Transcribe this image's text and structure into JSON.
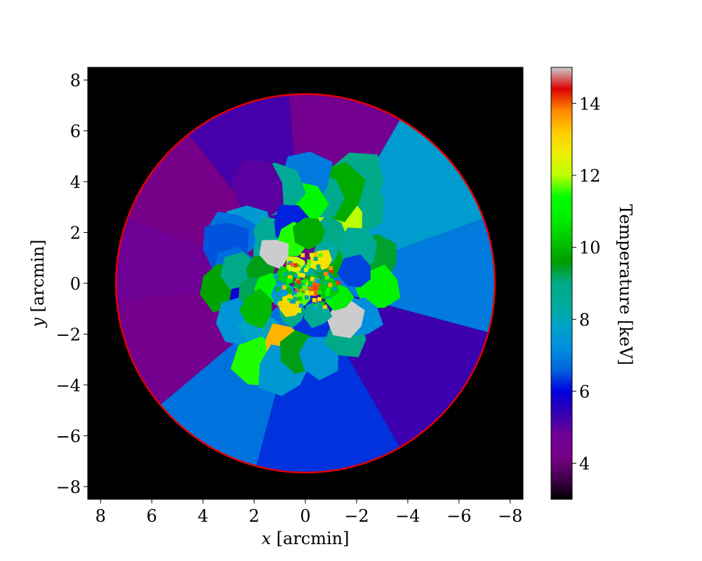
{
  "chart_data": {
    "type": "heatmap",
    "subtype": "voronoi temperature map",
    "xlabel": {
      "var": "x",
      "unit": " [arcmin]"
    },
    "ylabel": {
      "var": "y",
      "unit": " [arcmin]"
    },
    "x_ticks": [
      "8",
      "6",
      "4",
      "2",
      "0",
      "−2",
      "−4",
      "−6",
      "−8"
    ],
    "x_tick_values": [
      8,
      6,
      4,
      2,
      0,
      -2,
      -4,
      -6,
      -8
    ],
    "y_ticks": [
      "8",
      "6",
      "4",
      "2",
      "0",
      "−2",
      "−4",
      "−6",
      "−8"
    ],
    "y_tick_values": [
      8,
      6,
      4,
      2,
      0,
      -2,
      -4,
      -6,
      -8
    ],
    "xlim": [
      8.5,
      -8.5
    ],
    "ylim": [
      -8.5,
      8.5
    ],
    "x_inverted": true,
    "background_color": "#000000",
    "grid": false,
    "boundary_circle": {
      "center": [
        0,
        0
      ],
      "radius_arcmin": 7.4,
      "color": "#e00000"
    },
    "colorbar": {
      "label": "Temperature [keV]",
      "range": [
        3,
        15
      ],
      "ticks": [
        "4",
        "6",
        "8",
        "10",
        "12",
        "14"
      ],
      "tick_values": [
        4,
        6,
        8,
        10,
        12,
        14
      ],
      "colormap": "nipy_spectral"
    },
    "outer_sectors": [
      {
        "angle_deg": [
          20,
          60
        ],
        "temperature": 7.6
      },
      {
        "angle_deg": [
          60,
          95
        ],
        "temperature": 4.5
      },
      {
        "angle_deg": [
          95,
          128
        ],
        "temperature": 5.2
      },
      {
        "angle_deg": [
          128,
          160
        ],
        "temperature": 4.2
      },
      {
        "angle_deg": [
          160,
          185
        ],
        "temperature": 4.8
      },
      {
        "angle_deg": [
          185,
          220
        ],
        "temperature": 4.4
      },
      {
        "angle_deg": [
          220,
          255
        ],
        "temperature": 6.8
      },
      {
        "angle_deg": [
          255,
          300
        ],
        "temperature": 6.3
      },
      {
        "angle_deg": [
          300,
          345
        ],
        "temperature": 5.3
      },
      {
        "angle_deg": [
          345,
          380
        ],
        "temperature": 6.9
      }
    ],
    "inner_cells": [
      {
        "x": -2.8,
        "y": 1.0,
        "temperature": 9.4
      },
      {
        "x": -2.9,
        "y": -0.2,
        "temperature": 11.0
      },
      {
        "x": -2.1,
        "y": 3.1,
        "temperature": 8.9
      },
      {
        "x": -2.0,
        "y": 4.0,
        "temperature": 9.0
      },
      {
        "x": -1.5,
        "y": 2.5,
        "temperature": 12.0
      },
      {
        "x": -1.3,
        "y": 3.6,
        "temperature": 9.8
      },
      {
        "x": -0.6,
        "y": 3.4,
        "temperature": 8.8
      },
      {
        "x": 0.0,
        "y": 4.2,
        "temperature": 6.9
      },
      {
        "x": 0.1,
        "y": 3.1,
        "temperature": 11.2
      },
      {
        "x": 1.1,
        "y": 3.7,
        "temperature": 8.5
      },
      {
        "x": 1.8,
        "y": 3.7,
        "temperature": 5.0
      },
      {
        "x": 2.3,
        "y": 2.2,
        "temperature": 7.5
      },
      {
        "x": 2.9,
        "y": 1.9,
        "temperature": 6.8
      },
      {
        "x": 3.1,
        "y": 1.5,
        "temperature": 6.5
      },
      {
        "x": 2.8,
        "y": 0.5,
        "temperature": 6.7
      },
      {
        "x": 3.3,
        "y": -0.1,
        "temperature": 9.7
      },
      {
        "x": 2.5,
        "y": 0.4,
        "temperature": 9.0
      },
      {
        "x": 2.3,
        "y": -0.8,
        "temperature": 5.8
      },
      {
        "x": 2.6,
        "y": -1.5,
        "temperature": 7.4
      },
      {
        "x": 1.8,
        "y": -1.8,
        "temperature": 7.8
      },
      {
        "x": 1.8,
        "y": -3.2,
        "temperature": 11.5
      },
      {
        "x": 0.9,
        "y": -2.4,
        "temperature": 13.4
      },
      {
        "x": 0.9,
        "y": -3.4,
        "temperature": 7.5
      },
      {
        "x": 0.2,
        "y": -2.7,
        "temperature": 9.5
      },
      {
        "x": -0.5,
        "y": -2.9,
        "temperature": 7.4
      },
      {
        "x": -1.8,
        "y": -1.2,
        "temperature": 7.3
      },
      {
        "x": -1.6,
        "y": -2.1,
        "temperature": 9.0
      },
      {
        "x": -2.2,
        "y": -1.3,
        "temperature": 7.2
      },
      {
        "x": -1.6,
        "y": -1.4,
        "temperature": 15.0
      },
      {
        "x": -1.3,
        "y": 0.8,
        "temperature": 9.8
      },
      {
        "x": -1.0,
        "y": 1.9,
        "temperature": 9.0
      },
      {
        "x": -2.0,
        "y": 1.4,
        "temperature": 8.5
      },
      {
        "x": -2.0,
        "y": 0.4,
        "temperature": 6.4
      },
      {
        "x": 1.5,
        "y": 1.2,
        "temperature": 8.4
      },
      {
        "x": 1.7,
        "y": 0.5,
        "temperature": 9.5
      },
      {
        "x": 1.3,
        "y": 1.9,
        "temperature": 8.5
      },
      {
        "x": 0.6,
        "y": 2.3,
        "temperature": 6.2
      },
      {
        "x": 0.5,
        "y": 1.7,
        "temperature": 11.5
      },
      {
        "x": -0.2,
        "y": 2.0,
        "temperature": 9.8
      },
      {
        "x": 2.0,
        "y": -0.3,
        "temperature": 9.2
      },
      {
        "x": 1.4,
        "y": -0.2,
        "temperature": 11.0
      },
      {
        "x": 0.5,
        "y": -1.2,
        "temperature": 9.0
      },
      {
        "x": 1.9,
        "y": -1.0,
        "temperature": 10.0
      },
      {
        "x": -0.5,
        "y": -1.2,
        "temperature": 8.5
      },
      {
        "x": -1.3,
        "y": -0.5,
        "temperature": 10.8
      },
      {
        "x": -0.8,
        "y": 1.2,
        "temperature": 8.3
      },
      {
        "x": 1.2,
        "y": 1.2,
        "temperature": 15.0
      },
      {
        "x": -0.3,
        "y": -0.2,
        "temperature": 14.0
      },
      {
        "x": 0.8,
        "y": 0.3,
        "temperature": 10.3
      },
      {
        "x": 0.4,
        "y": 0.7,
        "temperature": 12.2
      },
      {
        "x": -0.5,
        "y": 0.5,
        "temperature": 9.3
      },
      {
        "x": 0.2,
        "y": -0.6,
        "temperature": 11.7
      },
      {
        "x": -0.1,
        "y": 0.4,
        "temperature": 8.7
      },
      {
        "x": 0.1,
        "y": -0.1,
        "temperature": 10.9
      },
      {
        "x": 0.9,
        "y": -0.4,
        "temperature": 7.5
      },
      {
        "x": -0.9,
        "y": -0.2,
        "temperature": 10.2
      },
      {
        "x": -0.6,
        "y": 0.9,
        "temperature": 12.8
      },
      {
        "x": 0.6,
        "y": -0.9,
        "temperature": 13.0
      }
    ]
  }
}
